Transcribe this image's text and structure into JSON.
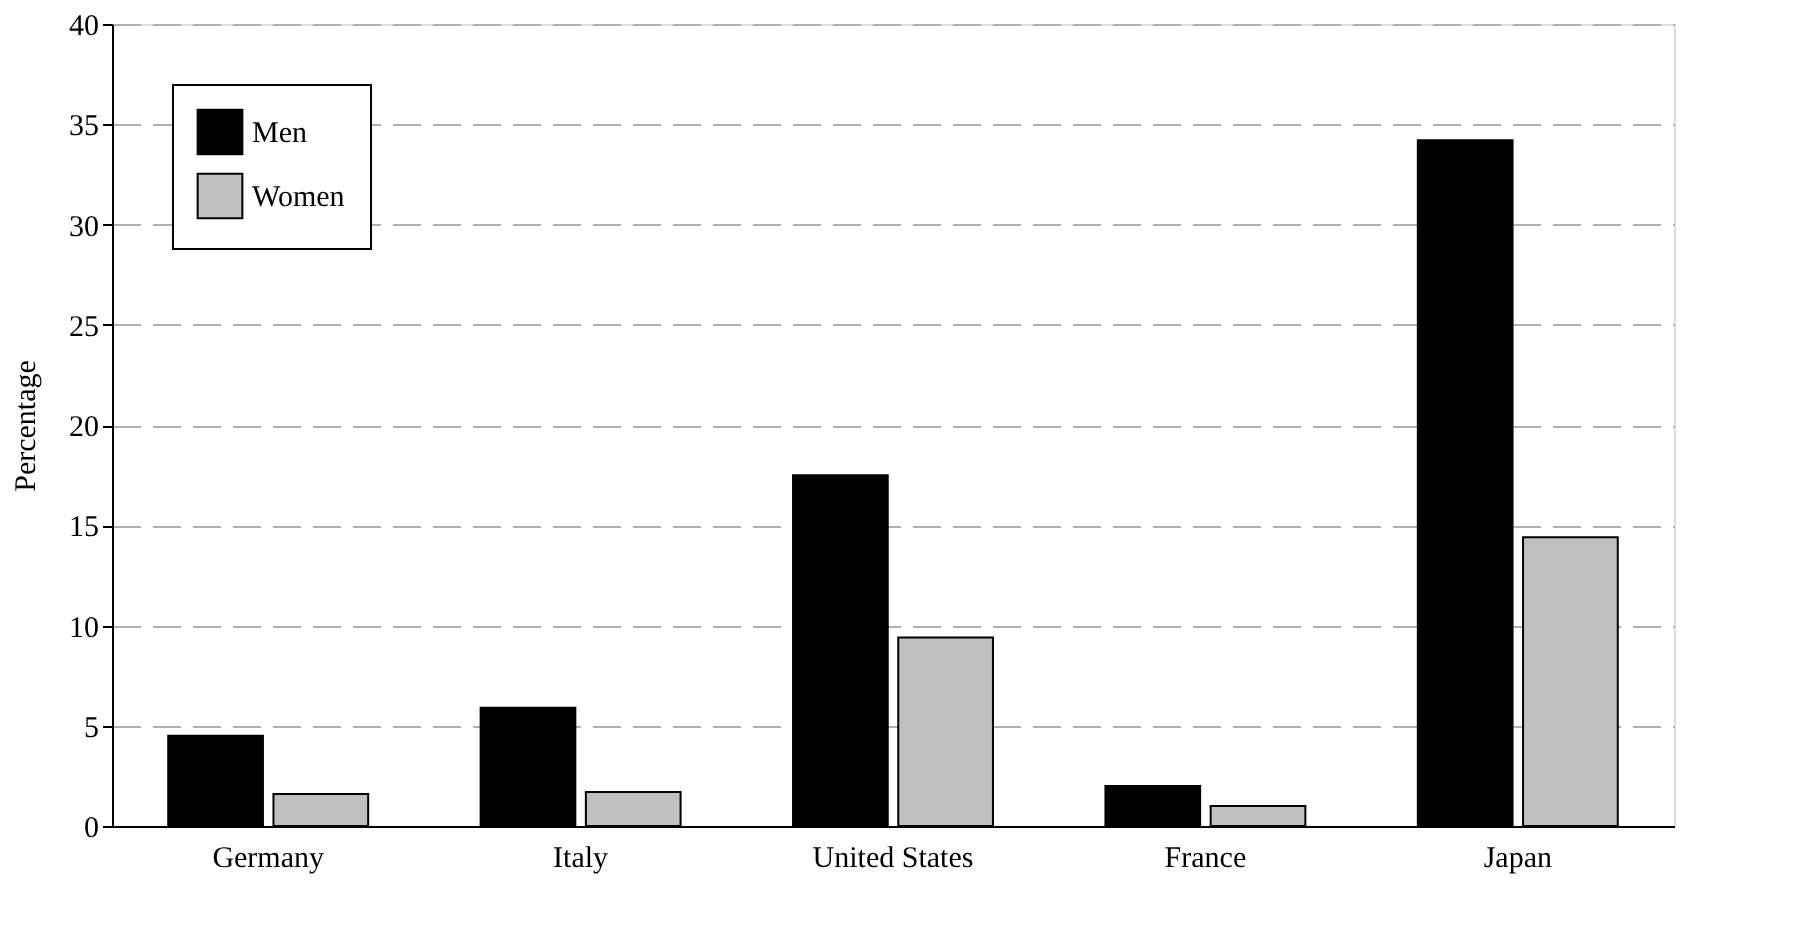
{
  "chart_data": {
    "type": "bar",
    "ylabel": "Percentage",
    "categories": [
      "Germany",
      "Italy",
      "United States",
      "France",
      "Japan"
    ],
    "series": [
      {
        "name": "Men",
        "color": "#000000",
        "values": [
          4.5,
          5.9,
          17.5,
          2.0,
          34.2
        ]
      },
      {
        "name": "Women",
        "color": "#c0c0c0",
        "values": [
          1.6,
          1.7,
          9.4,
          1.0,
          14.4
        ]
      }
    ],
    "ylim": [
      0,
      40
    ],
    "yticks": [
      0,
      5,
      10,
      15,
      20,
      25,
      30,
      35,
      40
    ],
    "grid": "y",
    "legend": "top left"
  }
}
